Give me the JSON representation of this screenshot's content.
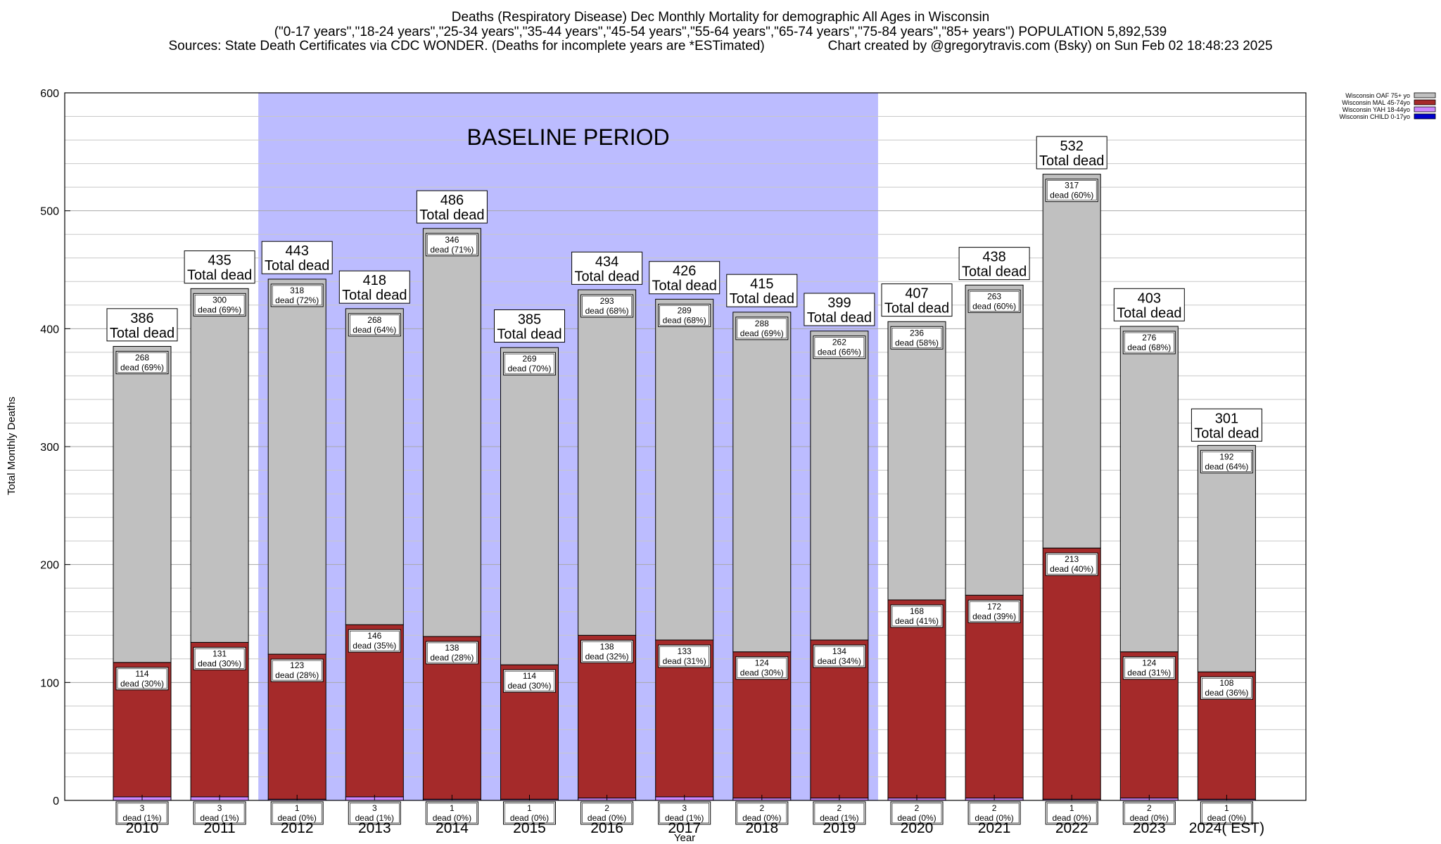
{
  "header": {
    "title": "Deaths (Respiratory Disease) Dec Monthly Mortality for demographic All Ages in Wisconsin",
    "subtitle": "(\"0-17 years\",\"18-24 years\",\"25-34 years\",\"35-44 years\",\"45-54 years\",\"55-64 years\",\"65-74 years\",\"75-84 years\",\"85+ years\") POPULATION 5,892,539",
    "sources": "Sources: State Death Certificates via CDC WONDER. (Deaths for incomplete years are *ESTimated)",
    "credit": "Chart created by @gregorytravis.com (Bsky) on Sun Feb 02 18:48:23 2025"
  },
  "colors": {
    "oaf": "#c0c0c0",
    "mal": "#a52a2a",
    "yah": "#cc88ff",
    "child": "#0000cc",
    "baseline": "#bcbcff",
    "grid": "#c8c8c8"
  },
  "chart_data": {
    "type": "bar",
    "stacked": true,
    "title": "Deaths (Respiratory Disease) Dec Monthly Mortality for demographic All Ages in Wisconsin",
    "xlabel": "Year",
    "ylabel": "Total Monthly Deaths",
    "ylim": [
      0,
      600
    ],
    "yticks": [
      0,
      100,
      200,
      300,
      400,
      500,
      600
    ],
    "grid": true,
    "legend_position": "top-right",
    "baseline_label": "BASELINE PERIOD",
    "baseline_range": [
      "2012",
      "2019"
    ],
    "total_label": "Total dead",
    "categories": [
      "2010",
      "2011",
      "2012",
      "2013",
      "2014",
      "2015",
      "2016",
      "2017",
      "2018",
      "2019",
      "2020",
      "2021",
      "2022",
      "2023",
      "2024( EST)"
    ],
    "totals": [
      386,
      435,
      443,
      418,
      486,
      385,
      434,
      426,
      415,
      399,
      407,
      438,
      532,
      403,
      301
    ],
    "series": [
      {
        "name": "Wisconsin CHILD 0-17yo",
        "key": "child",
        "values": [
          0,
          0,
          0,
          0,
          0,
          0,
          0,
          0,
          0,
          0,
          0,
          0,
          0,
          0,
          0
        ]
      },
      {
        "name": "Wisconsin YAH 18-44yo",
        "key": "yah",
        "values": [
          3,
          3,
          1,
          3,
          1,
          1,
          2,
          3,
          2,
          2,
          2,
          2,
          1,
          2,
          1
        ],
        "labels": [
          "dead (1%)",
          "dead (1%)",
          "dead (0%)",
          "dead (1%)",
          "dead (0%)",
          "dead (0%)",
          "dead (0%)",
          "dead (1%)",
          "dead (0%)",
          "dead (1%)",
          "dead (0%)",
          "dead (0%)",
          "dead (0%)",
          "dead (0%)",
          "dead (0%)"
        ]
      },
      {
        "name": "Wisconsin MAL 45-74yo",
        "key": "mal",
        "values": [
          114,
          131,
          123,
          146,
          138,
          114,
          138,
          133,
          124,
          134,
          168,
          172,
          213,
          124,
          108
        ],
        "labels": [
          "dead (30%)",
          "dead (30%)",
          "dead (28%)",
          "dead (35%)",
          "dead (28%)",
          "dead (30%)",
          "dead (32%)",
          "dead (31%)",
          "dead (30%)",
          "dead (34%)",
          "dead (41%)",
          "dead (39%)",
          "dead (40%)",
          "dead (31%)",
          "dead (36%)"
        ]
      },
      {
        "name": "Wisconsin OAF 75+ yo",
        "key": "oaf",
        "values": [
          268,
          300,
          318,
          268,
          346,
          269,
          293,
          289,
          288,
          262,
          236,
          263,
          317,
          276,
          192
        ],
        "labels": [
          "dead (69%)",
          "dead (69%)",
          "dead (72%)",
          "dead (64%)",
          "dead (71%)",
          "dead (70%)",
          "dead (68%)",
          "dead (68%)",
          "dead (69%)",
          "dead (66%)",
          "dead (58%)",
          "dead (60%)",
          "dead (60%)",
          "dead (68%)",
          "dead (64%)"
        ]
      }
    ]
  }
}
